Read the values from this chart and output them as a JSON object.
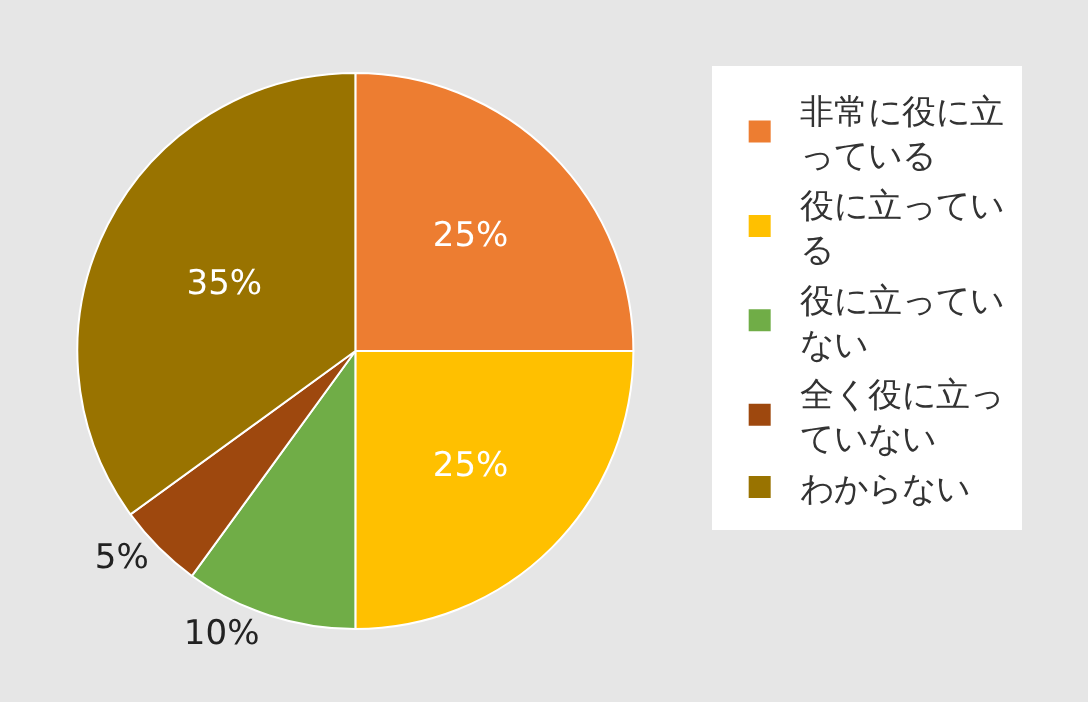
{
  "chart_data": {
    "type": "pie",
    "categories": [
      "非常に役に立っている",
      "役に立っている",
      "役に立っていない",
      "全く役に立っていない",
      "わからない"
    ],
    "values": [
      25,
      25,
      10,
      5,
      35
    ],
    "colors": [
      "#ed7d31",
      "#ffc000",
      "#70ad47",
      "#9e480e",
      "#997300"
    ],
    "value_labels": [
      "25%",
      "25%",
      "10%",
      "5%",
      "35%"
    ],
    "legend": "right"
  }
}
